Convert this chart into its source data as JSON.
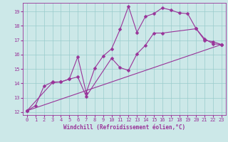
{
  "xlabel": "Windchill (Refroidissement éolien,°C)",
  "bg_color": "#cce8e8",
  "grid_color": "#99cccc",
  "line_color": "#993399",
  "xlim": [
    -0.5,
    23.5
  ],
  "ylim": [
    11.8,
    19.6
  ],
  "xticks": [
    0,
    1,
    2,
    3,
    4,
    5,
    6,
    7,
    8,
    9,
    10,
    11,
    12,
    13,
    14,
    15,
    16,
    17,
    18,
    19,
    20,
    21,
    22,
    23
  ],
  "yticks": [
    12,
    13,
    14,
    15,
    16,
    17,
    18,
    19
  ],
  "line1_x": [
    0,
    1,
    2,
    3,
    4,
    5,
    6,
    7,
    8,
    9,
    10,
    11,
    12,
    13,
    14,
    15,
    16,
    17,
    18,
    19,
    20,
    21,
    22,
    23
  ],
  "line1_y": [
    12.1,
    12.45,
    13.8,
    14.1,
    14.1,
    14.3,
    15.85,
    13.35,
    15.05,
    15.9,
    16.4,
    17.75,
    19.35,
    17.55,
    18.65,
    18.85,
    19.25,
    19.1,
    18.9,
    18.85,
    17.8,
    17.0,
    16.9,
    16.7
  ],
  "line2_x": [
    0,
    3,
    4,
    5,
    6,
    7,
    10,
    11,
    12,
    13,
    14,
    15,
    16,
    20,
    21,
    22,
    23
  ],
  "line2_y": [
    12.1,
    14.05,
    14.1,
    14.3,
    14.45,
    13.1,
    15.75,
    15.1,
    14.9,
    16.05,
    16.65,
    17.5,
    17.5,
    17.8,
    17.1,
    16.75,
    16.7
  ],
  "line3_x": [
    0,
    23
  ],
  "line3_y": [
    12.1,
    16.7
  ],
  "marker": "D",
  "marker_size": 2.5,
  "line_width": 0.8,
  "tick_fontsize": 5.0,
  "label_fontsize": 5.5,
  "tick_color": "#993399",
  "label_color": "#993399"
}
